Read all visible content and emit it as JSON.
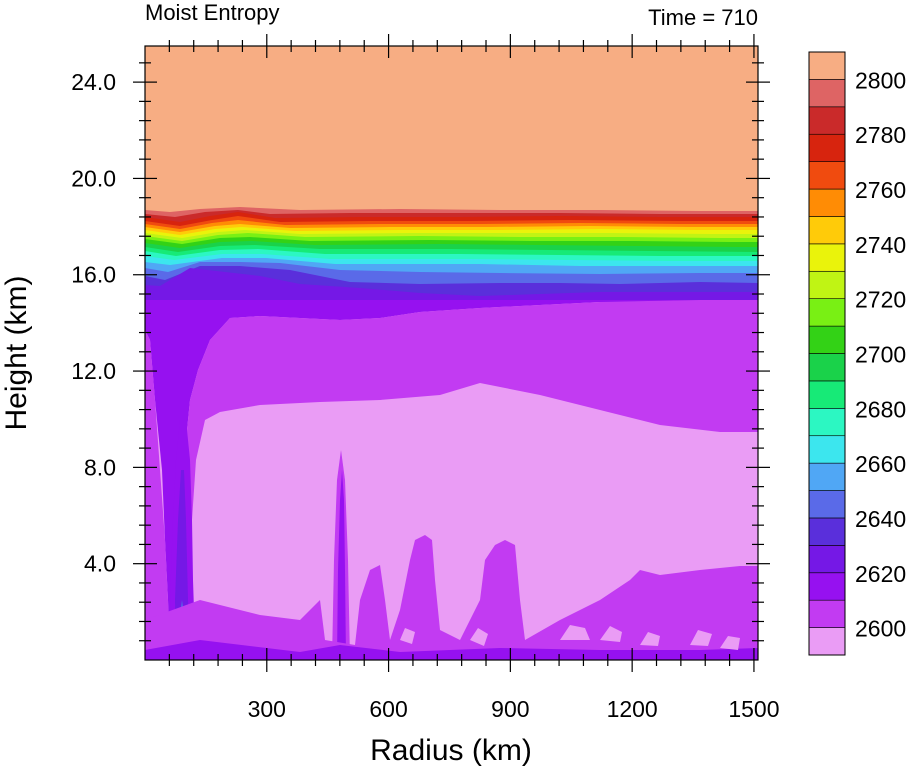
{
  "chart_data": {
    "type": "heatmap",
    "title_left": "Moist Entropy",
    "title_right": "Time = 710",
    "xlabel": "Radius (km)",
    "ylabel": "Height (km)",
    "xlim": [
      0,
      1510
    ],
    "ylim": [
      0,
      25.5
    ],
    "x_ticks": [
      300,
      600,
      900,
      1200,
      1500
    ],
    "x_tick_labels": [
      "300",
      "600",
      "900",
      "1200",
      "1500"
    ],
    "y_ticks": [
      4,
      8,
      12,
      16,
      20,
      24
    ],
    "y_tick_labels": [
      "4.0",
      "8.0",
      "12.0",
      "16.0",
      "20.0",
      "24.0"
    ],
    "colorbar": {
      "levels": [
        2600,
        2610,
        2620,
        2630,
        2640,
        2650,
        2660,
        2670,
        2680,
        2690,
        2700,
        2710,
        2720,
        2730,
        2740,
        2750,
        2760,
        2770,
        2780,
        2790,
        2800
      ],
      "labels": [
        "2600",
        "2620",
        "2640",
        "2660",
        "2680",
        "2700",
        "2720",
        "2740",
        "2760",
        "2780",
        "2800"
      ],
      "colors": [
        "#ea9cf5",
        "#c23bf2",
        "#9611f0",
        "#7518e6",
        "#5a2fdb",
        "#5a6ae8",
        "#50a7f5",
        "#3ce6ee",
        "#2cf7c2",
        "#17ea77",
        "#1ad24a",
        "#33d216",
        "#79f014",
        "#c0f414",
        "#eaf30b",
        "#ffcb09",
        "#ff8c05",
        "#f04b0f",
        "#d7240e",
        "#ca2a2a",
        "#de6464",
        "#f7ad83"
      ]
    },
    "bands": [
      {
        "level_top": 2800,
        "color": "#f7ad83"
      },
      {
        "level_top": 2790,
        "color": "#de6464"
      },
      {
        "level_top": 2780,
        "color": "#ca2a2a"
      },
      {
        "level_top": 2770,
        "color": "#d7240e"
      },
      {
        "level_top": 2760,
        "color": "#f04b0f"
      },
      {
        "level_top": 2750,
        "color": "#ff8c05"
      },
      {
        "level_top": 2740,
        "color": "#ffcb09"
      },
      {
        "level_top": 2730,
        "color": "#eaf30b"
      },
      {
        "level_top": 2720,
        "color": "#c0f414"
      },
      {
        "level_top": 2710,
        "color": "#79f014"
      },
      {
        "level_top": 2700,
        "color": "#33d216"
      },
      {
        "level_top": 2690,
        "color": "#1ad24a"
      },
      {
        "level_top": 2680,
        "color": "#17ea77"
      },
      {
        "level_top": 2670,
        "color": "#2cf7c2"
      },
      {
        "level_top": 2660,
        "color": "#3ce6ee"
      },
      {
        "level_top": 2650,
        "color": "#50a7f5"
      },
      {
        "level_top": 2640,
        "color": "#5a6ae8"
      },
      {
        "level_top": 2630,
        "color": "#5a2fdb"
      },
      {
        "level_top": 2620,
        "color": "#7518e6"
      },
      {
        "level_top": 2610,
        "color": "#9611f0"
      },
      {
        "level_top": 2600,
        "color": "#c23bf2"
      }
    ]
  }
}
